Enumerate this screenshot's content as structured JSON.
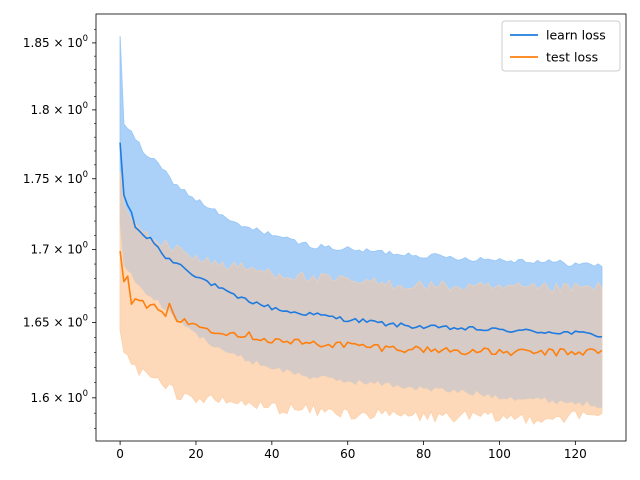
{
  "chart_data": {
    "type": "line",
    "x_ticks": [
      0,
      20,
      40,
      60,
      80,
      100,
      120
    ],
    "y_ticks": [
      {
        "value": 1.6,
        "base": "1.6",
        "sep": " × ",
        "exp_base": "10",
        "exp": "0"
      },
      {
        "value": 1.65,
        "base": "1.65",
        "sep": " × ",
        "exp_base": "10",
        "exp": "0"
      },
      {
        "value": 1.7,
        "base": "1.7",
        "sep": " × ",
        "exp_base": "10",
        "exp": "0"
      },
      {
        "value": 1.75,
        "base": "1.75",
        "sep": " × ",
        "exp_base": "10",
        "exp": "0"
      },
      {
        "value": 1.8,
        "base": "1.8",
        "sep": " × ",
        "exp_base": "10",
        "exp": "0"
      },
      {
        "value": 1.85,
        "base": "1.85",
        "sep": " × ",
        "exp_base": "10",
        "exp": "0"
      }
    ],
    "xlim": [
      -6.35,
      133.35
    ],
    "ylim": [
      1.572,
      1.872
    ],
    "y_scale": "log",
    "grid": false,
    "legend_position": "top-right",
    "series": [
      {
        "name": "learn loss",
        "color": "#1f7be0",
        "band_color": "#9cc9f7",
        "x_start": 0,
        "x_step": 1,
        "anchors_mean": [
          [
            0,
            1.776
          ],
          [
            1,
            1.737
          ],
          [
            2,
            1.731
          ],
          [
            3,
            1.726
          ],
          [
            4,
            1.716
          ],
          [
            6,
            1.71
          ],
          [
            8,
            1.707
          ],
          [
            10,
            1.702
          ],
          [
            12,
            1.694
          ],
          [
            15,
            1.691
          ],
          [
            20,
            1.682
          ],
          [
            25,
            1.675
          ],
          [
            30,
            1.668
          ],
          [
            35,
            1.664
          ],
          [
            40,
            1.66
          ],
          [
            45,
            1.657
          ],
          [
            50,
            1.656
          ],
          [
            55,
            1.654
          ],
          [
            60,
            1.652
          ],
          [
            65,
            1.651
          ],
          [
            70,
            1.649
          ],
          [
            75,
            1.648
          ],
          [
            80,
            1.647
          ],
          [
            90,
            1.646
          ],
          [
            100,
            1.645
          ],
          [
            110,
            1.644
          ],
          [
            120,
            1.643
          ],
          [
            125,
            1.642
          ],
          [
            127,
            1.641
          ]
        ],
        "anchors_upper": [
          [
            0,
            1.855
          ],
          [
            1,
            1.79
          ],
          [
            3,
            1.783
          ],
          [
            6,
            1.77
          ],
          [
            10,
            1.76
          ],
          [
            15,
            1.745
          ],
          [
            20,
            1.735
          ],
          [
            25,
            1.727
          ],
          [
            30,
            1.718
          ],
          [
            35,
            1.714
          ],
          [
            40,
            1.711
          ],
          [
            45,
            1.706
          ],
          [
            50,
            1.703
          ],
          [
            60,
            1.7
          ],
          [
            70,
            1.698
          ],
          [
            80,
            1.696
          ],
          [
            90,
            1.694
          ],
          [
            100,
            1.693
          ],
          [
            110,
            1.692
          ],
          [
            120,
            1.69
          ],
          [
            127,
            1.689
          ]
        ],
        "anchors_lower": [
          [
            0,
            1.718
          ],
          [
            1,
            1.69
          ],
          [
            3,
            1.682
          ],
          [
            6,
            1.672
          ],
          [
            10,
            1.664
          ],
          [
            15,
            1.652
          ],
          [
            20,
            1.642
          ],
          [
            25,
            1.635
          ],
          [
            30,
            1.628
          ],
          [
            35,
            1.624
          ],
          [
            40,
            1.62
          ],
          [
            45,
            1.617
          ],
          [
            50,
            1.614
          ],
          [
            60,
            1.611
          ],
          [
            70,
            1.609
          ],
          [
            80,
            1.606
          ],
          [
            90,
            1.604
          ],
          [
            100,
            1.601
          ],
          [
            110,
            1.599
          ],
          [
            120,
            1.597
          ],
          [
            127,
            1.595
          ]
        ],
        "noise": 0.0015,
        "band_noise": 0.002
      },
      {
        "name": "test loss",
        "color": "#ff7f0e",
        "band_color": "#fdd2ad",
        "x_start": 0,
        "x_step": 1,
        "anchors_mean": [
          [
            0,
            1.699
          ],
          [
            1,
            1.68
          ],
          [
            2,
            1.684
          ],
          [
            3,
            1.664
          ],
          [
            5,
            1.664
          ],
          [
            8,
            1.661
          ],
          [
            10,
            1.659
          ],
          [
            12,
            1.652
          ],
          [
            13,
            1.665
          ],
          [
            15,
            1.652
          ],
          [
            20,
            1.648
          ],
          [
            25,
            1.645
          ],
          [
            30,
            1.643
          ],
          [
            35,
            1.641
          ],
          [
            40,
            1.638
          ],
          [
            45,
            1.637
          ],
          [
            50,
            1.636
          ],
          [
            60,
            1.635
          ],
          [
            70,
            1.633
          ],
          [
            80,
            1.632
          ],
          [
            90,
            1.631
          ],
          [
            100,
            1.63
          ],
          [
            110,
            1.63
          ],
          [
            120,
            1.63
          ],
          [
            127,
            1.631
          ]
        ],
        "anchors_upper": [
          [
            0,
            1.755
          ],
          [
            1,
            1.73
          ],
          [
            3,
            1.72
          ],
          [
            6,
            1.712
          ],
          [
            10,
            1.705
          ],
          [
            15,
            1.7
          ],
          [
            20,
            1.695
          ],
          [
            25,
            1.69
          ],
          [
            30,
            1.688
          ],
          [
            40,
            1.684
          ],
          [
            50,
            1.68
          ],
          [
            60,
            1.678
          ],
          [
            70,
            1.676
          ],
          [
            80,
            1.675
          ],
          [
            90,
            1.674
          ],
          [
            100,
            1.673
          ],
          [
            110,
            1.673
          ],
          [
            120,
            1.673
          ],
          [
            127,
            1.674
          ]
        ],
        "anchors_lower": [
          [
            0,
            1.645
          ],
          [
            1,
            1.63
          ],
          [
            3,
            1.622
          ],
          [
            6,
            1.617
          ],
          [
            10,
            1.61
          ],
          [
            15,
            1.603
          ],
          [
            20,
            1.6
          ],
          [
            25,
            1.598
          ],
          [
            30,
            1.597
          ],
          [
            40,
            1.594
          ],
          [
            50,
            1.592
          ],
          [
            60,
            1.59
          ],
          [
            70,
            1.589
          ],
          [
            80,
            1.588
          ],
          [
            90,
            1.588
          ],
          [
            100,
            1.587
          ],
          [
            110,
            1.587
          ],
          [
            120,
            1.588
          ],
          [
            127,
            1.589
          ]
        ],
        "noise": 0.0025,
        "band_noise": 0.004
      }
    ],
    "n_points": 128,
    "overlap_color": "#d6cbc6"
  }
}
